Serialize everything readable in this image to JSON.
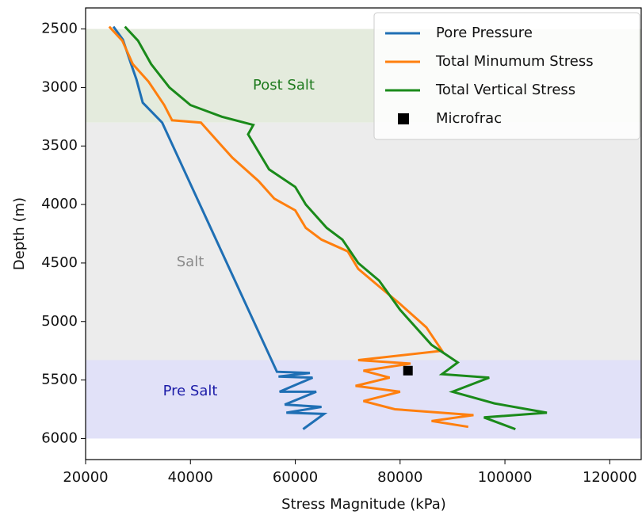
{
  "chart_data": {
    "type": "line",
    "xlabel": "Stress Magnitude (kPa)",
    "ylabel": "Depth (m)",
    "xlim": [
      20000,
      126000
    ],
    "ylim": [
      6180,
      2320
    ],
    "xticks": [
      20000,
      40000,
      60000,
      80000,
      100000,
      120000
    ],
    "yticks": [
      2500,
      3000,
      3500,
      4000,
      4500,
      5000,
      5500,
      6000
    ],
    "legend": "upper right",
    "regions": [
      {
        "label": "Post Salt",
        "from": 2500,
        "to": 3300,
        "color": "#e4ebdd",
        "label_color": "#1e7a1e"
      },
      {
        "label": "Salt",
        "from": 3300,
        "to": 5330,
        "color": "#ececec",
        "label_color": "#8a8a8a"
      },
      {
        "label": "Pre Salt",
        "from": 5330,
        "to": 6000,
        "color": "#e1e1f8",
        "label_color": "#1c1ca8"
      }
    ],
    "series": [
      {
        "name": "Pore Pressure",
        "color": "#1f6fb4",
        "marker": "line",
        "stress": [
          25300,
          27100,
          28600,
          29700,
          30900,
          34600,
          56500,
          62800,
          56800,
          63300,
          57000,
          64000,
          58000,
          65000,
          58300,
          65500,
          61500
        ],
        "depth": [
          2480,
          2590,
          2790,
          2930,
          3130,
          3300,
          5430,
          5440,
          5470,
          5480,
          5600,
          5600,
          5710,
          5730,
          5780,
          5790,
          5920
        ]
      },
      {
        "name": "Total Minumum Stress",
        "color": "#ff7f0e",
        "marker": "line",
        "stress": [
          24500,
          27000,
          29000,
          32000,
          35000,
          36500,
          42000,
          44000,
          46000,
          48000,
          50500,
          53000,
          56000,
          60000,
          62000,
          65000,
          70000,
          72000,
          76000,
          80000,
          85000,
          88000,
          72000,
          82000,
          73000,
          78000,
          71500,
          80000,
          73000,
          79000,
          94000,
          86000,
          93000
        ],
        "depth": [
          2480,
          2600,
          2800,
          2950,
          3150,
          3280,
          3300,
          3400,
          3500,
          3600,
          3700,
          3800,
          3950,
          4050,
          4200,
          4300,
          4400,
          4550,
          4700,
          4850,
          5050,
          5250,
          5330,
          5360,
          5420,
          5480,
          5550,
          5600,
          5680,
          5750,
          5800,
          5850,
          5900
        ]
      },
      {
        "name": "Total Vertical Stress",
        "color": "#1a8a1a",
        "marker": "line",
        "stress": [
          27500,
          30000,
          32500,
          36000,
          40000,
          46000,
          52000,
          51000,
          53000,
          55000,
          60000,
          62000,
          66000,
          69000,
          72000,
          76000,
          80000,
          86000,
          91000,
          88000,
          97000,
          90000,
          98000,
          108000,
          96000,
          102000
        ],
        "depth": [
          2480,
          2600,
          2800,
          3000,
          3150,
          3250,
          3320,
          3400,
          3550,
          3700,
          3850,
          4000,
          4200,
          4300,
          4500,
          4650,
          4900,
          5200,
          5350,
          5450,
          5480,
          5600,
          5700,
          5780,
          5820,
          5920
        ]
      },
      {
        "name": "Microfrac",
        "color": "#000000",
        "marker": "square",
        "stress": [
          81500
        ],
        "depth": [
          5420
        ]
      }
    ]
  }
}
